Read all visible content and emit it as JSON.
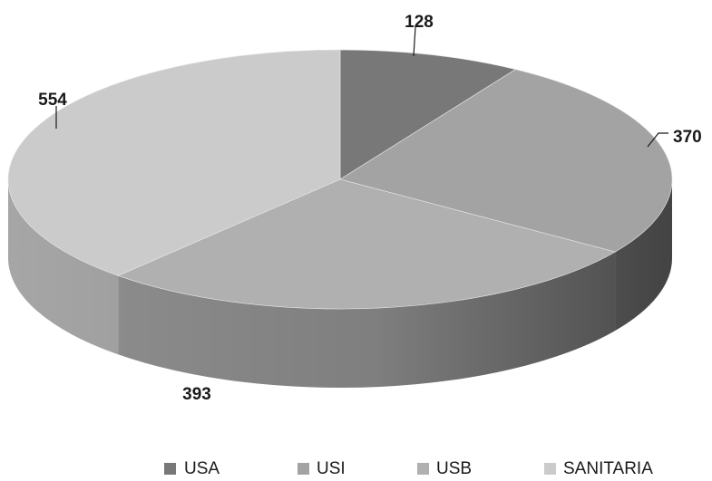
{
  "chart_data": {
    "type": "pie",
    "style": "3d",
    "title": "",
    "categories": [
      "USA",
      "USI",
      "USB",
      "SANITARIA"
    ],
    "values": [
      128,
      370,
      393,
      554
    ],
    "colors": [
      "#787878",
      "#a3a3a3",
      "#b0b0b0",
      "#cbcbcb"
    ],
    "labels": [
      "128",
      "370",
      "393",
      "554"
    ],
    "legend": {
      "position": "bottom",
      "entries": [
        "USA",
        "USI",
        "USB",
        "SANITARIA"
      ]
    }
  }
}
